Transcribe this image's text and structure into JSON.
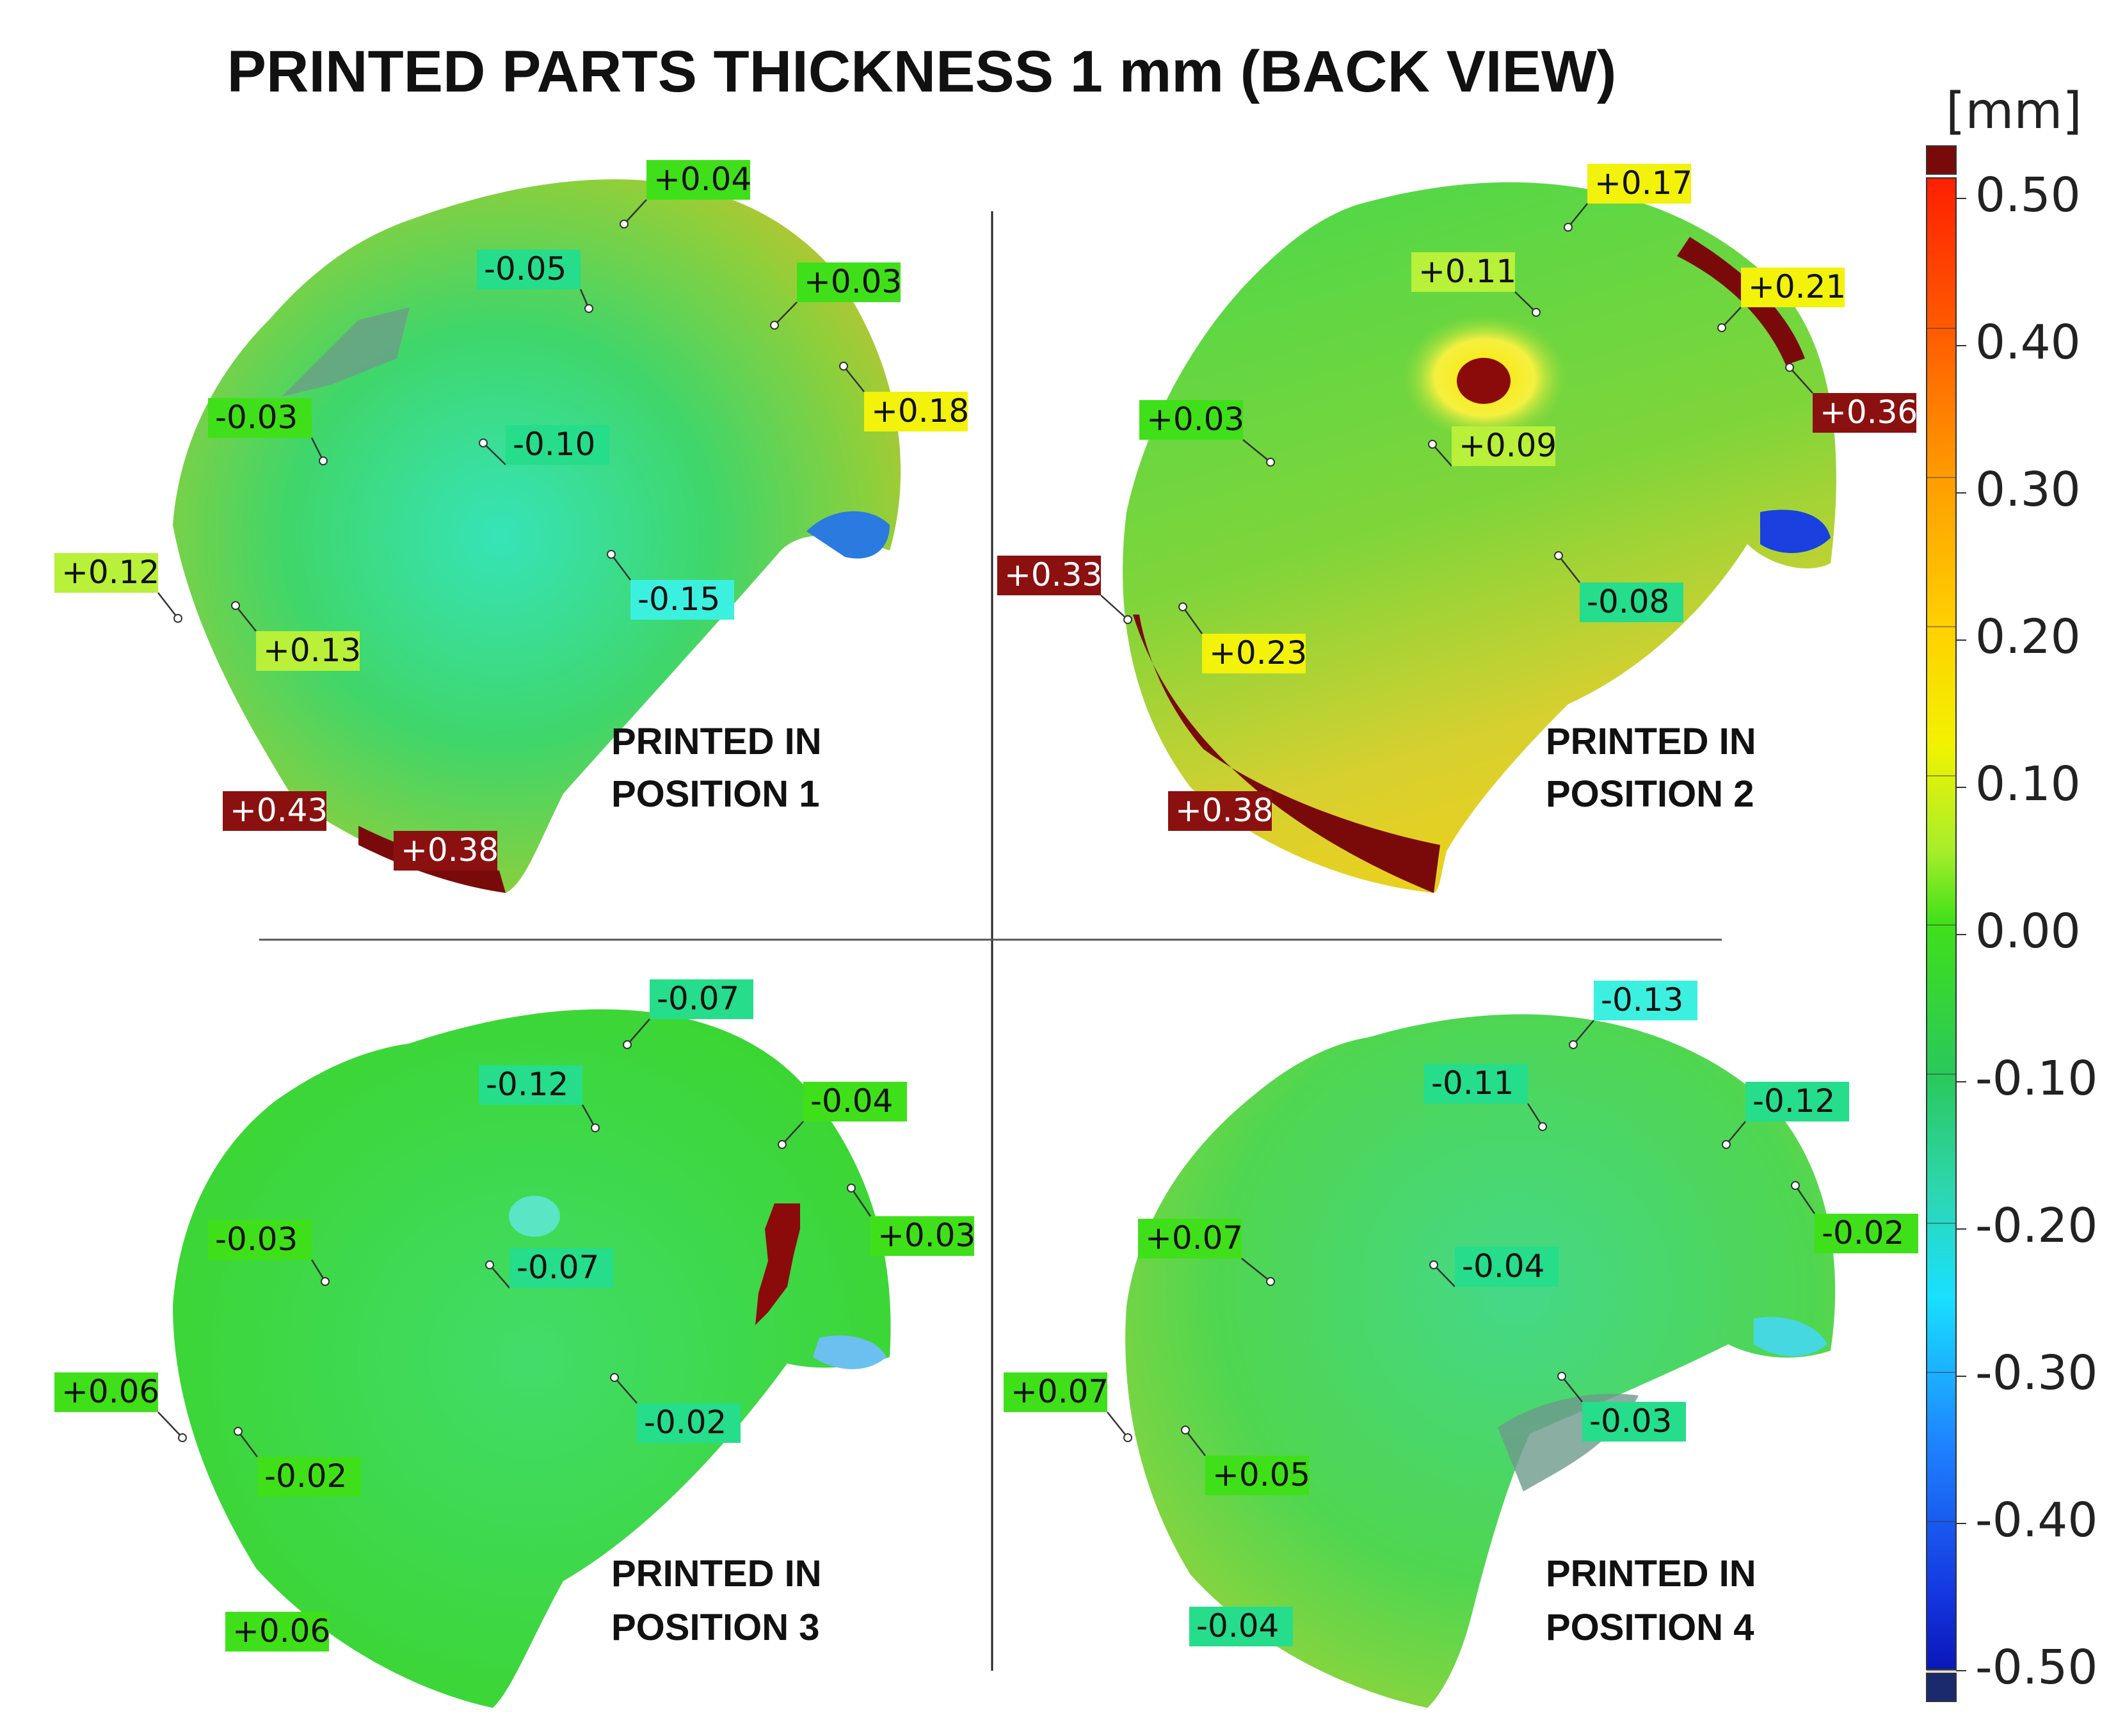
{
  "title": "PRINTED PARTS THICKNESS 1 mm (BACK VIEW)",
  "colorbar": {
    "unit": "[mm]",
    "ticks": [
      "0.50",
      "0.40",
      "0.30",
      "0.20",
      "0.10",
      "0.00",
      "-0.10",
      "-0.20",
      "-0.30",
      "-0.40",
      "-0.50"
    ],
    "colors": {
      "over": "#7a0a0a",
      "under": "#1a2a6c",
      "stops": [
        "#ff1f00",
        "#ff7a00",
        "#ffb000",
        "#ffe600",
        "#b8f03a",
        "#3fe01a",
        "#25c23a",
        "#2dd6a0",
        "#19d8ff",
        "#1e78ff",
        "#1230e0",
        "#0a18c0"
      ]
    }
  },
  "panels": [
    {
      "caption_line1": "PRINTED IN",
      "caption_line2": "POSITION 1",
      "labels": [
        "+0.04",
        "-0.05",
        "+0.03",
        "+0.18",
        "-0.03",
        "-0.10",
        "+0.12",
        "-0.15",
        "+0.13",
        "+0.43",
        "+0.38"
      ]
    },
    {
      "caption_line1": "PRINTED IN",
      "caption_line2": "POSITION 2",
      "labels": [
        "+0.17",
        "+0.11",
        "+0.21",
        "+0.36",
        "+0.03",
        "+0.09",
        "+0.33",
        "-0.08",
        "+0.23",
        "+0.38"
      ]
    },
    {
      "caption_line1": "PRINTED IN",
      "caption_line2": "POSITION 3",
      "labels": [
        "-0.07",
        "-0.12",
        "-0.04",
        "+0.03",
        "-0.03",
        "-0.07",
        "+0.06",
        "-0.02",
        "-0.02",
        "+0.06"
      ]
    },
    {
      "caption_line1": "PRINTED IN",
      "caption_line2": "POSITION 4",
      "labels": [
        "-0.13",
        "-0.11",
        "-0.12",
        "-0.02",
        "+0.07",
        "-0.04",
        "+0.07",
        "-0.03",
        "+0.05",
        "-0.04"
      ]
    }
  ],
  "label_colors": {
    "dark_red": "#8b1010",
    "yellow": "#f2f20a",
    "yellow_green": "#b8f03a",
    "green": "#3fe01a",
    "teal_green": "#25dd8a",
    "cyan": "#3cf0e0"
  }
}
